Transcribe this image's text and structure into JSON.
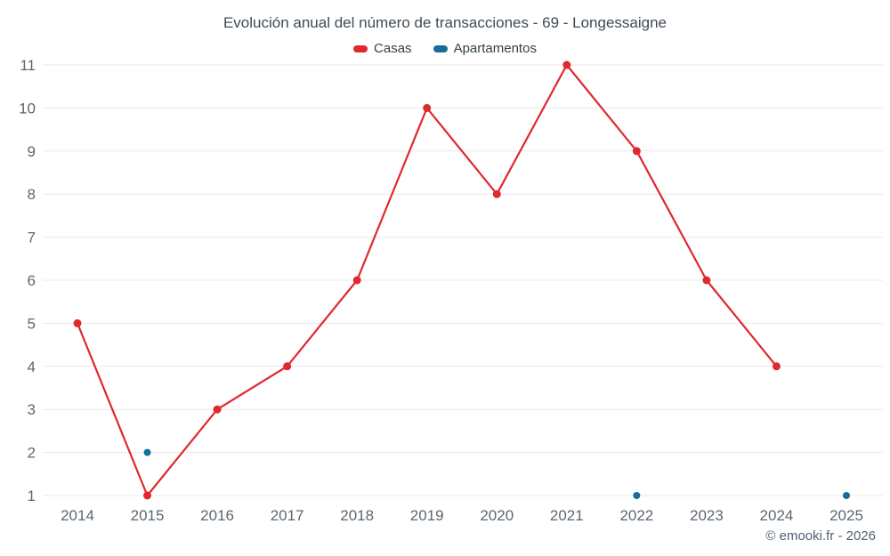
{
  "footer": {
    "text": "© emooki.fr - 2026"
  },
  "chart_data": {
    "type": "line",
    "title": "Evolución anual del número de transacciones - 69 - Longessaigne",
    "xlabel": "",
    "ylabel": "",
    "categories": [
      "2014",
      "2015",
      "2016",
      "2017",
      "2018",
      "2019",
      "2020",
      "2021",
      "2022",
      "2023",
      "2024",
      "2025"
    ],
    "yticks": [
      1,
      2,
      3,
      4,
      5,
      6,
      7,
      8,
      9,
      10,
      11
    ],
    "ylim": [
      1,
      11
    ],
    "grid": "horizontal",
    "legend_position": "top",
    "grid_color": "#e9e9e9",
    "axis_label_color": "#5b6772",
    "series": [
      {
        "name": "Casas",
        "color": "#e0282f",
        "values": [
          5,
          1,
          3,
          4,
          6,
          10,
          8,
          11,
          9,
          6,
          4,
          null
        ]
      },
      {
        "name": "Apartamentos",
        "color": "#156e99",
        "values": [
          null,
          2,
          null,
          null,
          null,
          null,
          null,
          null,
          1,
          null,
          null,
          1
        ]
      }
    ]
  }
}
